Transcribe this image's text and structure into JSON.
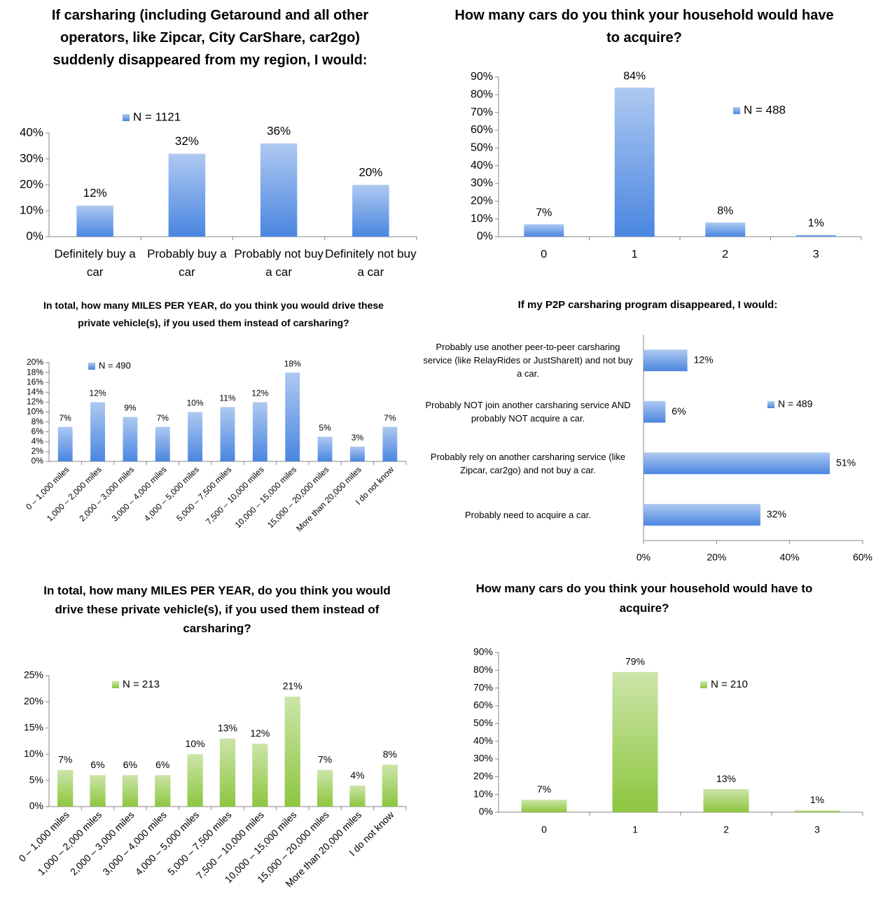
{
  "chart_data": [
    {
      "type": "bar",
      "title": "If carsharing (including Getaround and all other operators, like Zipcar, City CarShare, car2go) suddenly disappeared from my region, I would:",
      "categories": [
        "Definitely buy a car",
        "Probably buy a car",
        "Probably not buy a car",
        "Definitely not buy a car"
      ],
      "series": [
        {
          "name": "N = 1121",
          "color": "#4a86e0",
          "values": [
            12,
            32,
            36,
            20
          ],
          "value_labels": [
            "12%",
            "32%",
            "36%",
            "20%"
          ]
        }
      ],
      "ylim": [
        0,
        40
      ],
      "yticks": [
        {
          "value": 0,
          "label": "0%"
        },
        {
          "value": 10,
          "label": "10%"
        },
        {
          "value": 20,
          "label": "20%"
        },
        {
          "value": 30,
          "label": "30%"
        },
        {
          "value": 40,
          "label": "40%"
        }
      ]
    },
    {
      "type": "bar",
      "title": "How many cars do you think your household would have to acquire?",
      "categories": [
        "0",
        "1",
        "2",
        "3"
      ],
      "series": [
        {
          "name": "N = 488",
          "color": "#4a86e0",
          "values": [
            7,
            84,
            8,
            1
          ],
          "value_labels": [
            "7%",
            "84%",
            "8%",
            "1%"
          ]
        }
      ],
      "ylim": [
        0,
        90
      ],
      "yticks": [
        {
          "value": 0,
          "label": "0%"
        },
        {
          "value": 10,
          "label": "10%"
        },
        {
          "value": 20,
          "label": "20%"
        },
        {
          "value": 30,
          "label": "30%"
        },
        {
          "value": 40,
          "label": "40%"
        },
        {
          "value": 50,
          "label": "50%"
        },
        {
          "value": 60,
          "label": "60%"
        },
        {
          "value": 70,
          "label": "70%"
        },
        {
          "value": 80,
          "label": "80%"
        },
        {
          "value": 90,
          "label": "90%"
        }
      ]
    },
    {
      "type": "bar",
      "title": "In total, how many MILES PER YEAR, do you think you would drive these private vehicle(s), if you used them instead of carsharing?",
      "categories": [
        "0 – 1,000 miles",
        "1,000 – 2,000 miles",
        "2,000 – 3,000 miles",
        "3,000 – 4,000 miles",
        "4,000 – 5,000 miles",
        "5,000 – 7,500 miles",
        "7,500 – 10,000 miles",
        "10,000 – 15,000 miles",
        "15,000 – 20,000 miles",
        "More than 20,000 miles",
        "I do not know"
      ],
      "series": [
        {
          "name": "N = 490",
          "color": "#4a86e0",
          "values": [
            7,
            12,
            9,
            7,
            10,
            11,
            12,
            18,
            5,
            3,
            7
          ],
          "value_labels": [
            "7%",
            "12%",
            "9%",
            "7%",
            "10%",
            "11%",
            "12%",
            "18%",
            "5%",
            "3%",
            "7%"
          ]
        }
      ],
      "ylim": [
        0,
        20
      ],
      "yticks": [
        {
          "value": 0,
          "label": "0%"
        },
        {
          "value": 2,
          "label": "2%"
        },
        {
          "value": 4,
          "label": "4%"
        },
        {
          "value": 6,
          "label": "6%"
        },
        {
          "value": 8,
          "label": "8%"
        },
        {
          "value": 10,
          "label": "10%"
        },
        {
          "value": 12,
          "label": "12%"
        },
        {
          "value": 14,
          "label": "14%"
        },
        {
          "value": 16,
          "label": "16%"
        },
        {
          "value": 18,
          "label": "18%"
        },
        {
          "value": 20,
          "label": "20%"
        }
      ]
    },
    {
      "type": "hbar",
      "title": "If my P2P carsharing program disappeared, I would:",
      "categories": [
        "Probably use another peer-to-peer carsharing service (like RelayRides or JustShareIt) and not buy a car.",
        "Probably NOT join another carsharing service AND probably NOT acquire a car.",
        "Probably rely on another carsharing service (like Zipcar, car2go) and not buy a car.",
        "Probably need to acquire a car."
      ],
      "series": [
        {
          "name": "N = 489",
          "color": "#4a86e0",
          "values": [
            12,
            6,
            51,
            32
          ],
          "value_labels": [
            "12%",
            "6%",
            "51%",
            "32%"
          ]
        }
      ],
      "xlim": [
        0,
        60
      ],
      "xticks": [
        {
          "value": 0,
          "label": "0%"
        },
        {
          "value": 20,
          "label": "20%"
        },
        {
          "value": 40,
          "label": "40%"
        },
        {
          "value": 60,
          "label": "60%"
        }
      ]
    },
    {
      "type": "bar",
      "title": "In total, how many MILES PER YEAR, do you think you would drive these private vehicle(s), if you used them instead of carsharing?",
      "categories": [
        "0 – 1,000 miles",
        "1,000 – 2,000 miles",
        "2,000 – 3,000 miles",
        "3,000 – 4,000 miles",
        "4,000 – 5,000 miles",
        "5,000 – 7,500 miles",
        "7,500 – 10,000 miles",
        "10,000 – 15,000 miles",
        "15,000 – 20,000 miles",
        "More than 20,000 miles",
        "I do not know"
      ],
      "series": [
        {
          "name": "N = 213",
          "color": "#8dc63f",
          "values": [
            7,
            6,
            6,
            6,
            10,
            13,
            12,
            21,
            7,
            4,
            8
          ],
          "value_labels": [
            "7%",
            "6%",
            "6%",
            "6%",
            "10%",
            "13%",
            "12%",
            "21%",
            "7%",
            "4%",
            "8%"
          ]
        }
      ],
      "ylim": [
        0,
        25
      ],
      "yticks": [
        {
          "value": 0,
          "label": "0%"
        },
        {
          "value": 5,
          "label": "5%"
        },
        {
          "value": 10,
          "label": "10%"
        },
        {
          "value": 15,
          "label": "15%"
        },
        {
          "value": 20,
          "label": "20%"
        },
        {
          "value": 25,
          "label": "25%"
        }
      ]
    },
    {
      "type": "bar",
      "title": "How many cars do you think your household would have to acquire?",
      "categories": [
        "0",
        "1",
        "2",
        "3"
      ],
      "series": [
        {
          "name": "N = 210",
          "color": "#8dc63f",
          "values": [
            7,
            79,
            13,
            1
          ],
          "value_labels": [
            "7%",
            "79%",
            "13%",
            "1%"
          ]
        }
      ],
      "ylim": [
        0,
        90
      ],
      "yticks": [
        {
          "value": 0,
          "label": "0%"
        },
        {
          "value": 10,
          "label": "10%"
        },
        {
          "value": 20,
          "label": "20%"
        },
        {
          "value": 30,
          "label": "30%"
        },
        {
          "value": 40,
          "label": "40%"
        },
        {
          "value": 50,
          "label": "50%"
        },
        {
          "value": 60,
          "label": "60%"
        },
        {
          "value": 70,
          "label": "70%"
        },
        {
          "value": 80,
          "label": "80%"
        },
        {
          "value": 90,
          "label": "90%"
        }
      ]
    }
  ]
}
